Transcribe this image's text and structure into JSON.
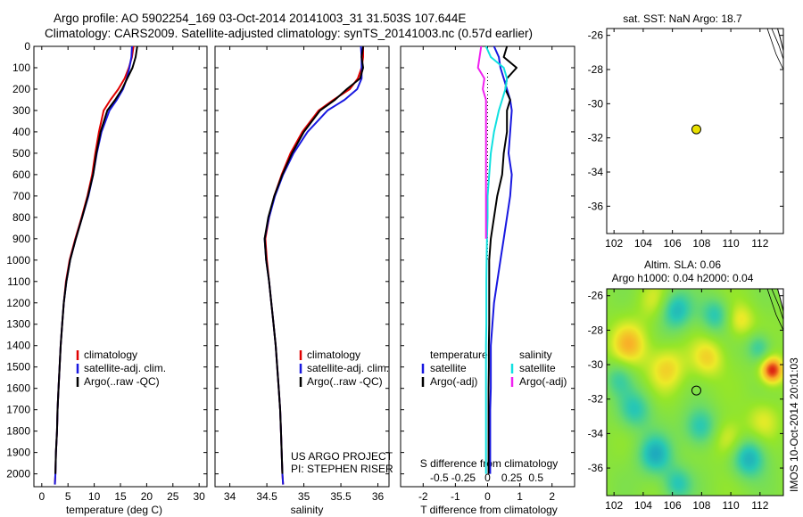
{
  "header": {
    "line1": "Argo profile: AO 5902254_169 03-Oct-2014 20141003_31 31.503S 107.644E",
    "line2": "Climatology: CARS2009. Satellite-adjusted climatology: synTS_20141003.nc (0.57d earlier)"
  },
  "footer": {
    "stamp": "IMOS 10-Oct-2014 20:01:03"
  },
  "colors": {
    "climatology": "#e00000",
    "satellite": "#1818e0",
    "argo": "#000000",
    "sat_salinity": "#10e0e0",
    "argo_salinity": "#f020f0",
    "marker": "#e8e000"
  },
  "chart_data": [
    {
      "type": "line",
      "id": "temperature",
      "xlabel": "temperature (deg C)",
      "ylabel": "",
      "xlim": [
        -1.5,
        31.5
      ],
      "ylim": [
        2060,
        0
      ],
      "xticks": [
        0,
        5,
        10,
        15,
        20,
        25,
        30
      ],
      "xtick_labels": [
        "0",
        "5",
        "10",
        "15",
        "20",
        "25",
        "30"
      ],
      "yticks": [
        0,
        100,
        200,
        300,
        400,
        500,
        600,
        700,
        800,
        900,
        1000,
        1100,
        1200,
        1300,
        1400,
        1500,
        1600,
        1700,
        1800,
        1900,
        2000
      ],
      "ytick_labels": [
        "0",
        "100",
        "200",
        "300",
        "400",
        "500",
        "600",
        "700",
        "800",
        "900",
        "1000",
        "1100",
        "1200",
        "1300",
        "1400",
        "1500",
        "1600",
        "1700",
        "1800",
        "1900",
        "2000"
      ],
      "legend": [
        "climatology",
        "satellite-adj. clim.",
        "Argo(..raw -QC)"
      ],
      "series": [
        {
          "name": "climatology",
          "color": "#e00000",
          "x": [
            17.5,
            17.2,
            16.6,
            15.8,
            14.6,
            13.1,
            11.8,
            10.9,
            10.2,
            9.6,
            8.7,
            7.6,
            6.4,
            5.3,
            4.6,
            4.2,
            3.9,
            3.6,
            3.4,
            3.2,
            3.0,
            2.9,
            2.7,
            2.6,
            2.5
          ],
          "y": [
            0,
            50,
            100,
            150,
            200,
            250,
            300,
            400,
            500,
            600,
            700,
            800,
            900,
            1000,
            1100,
            1200,
            1300,
            1400,
            1500,
            1600,
            1700,
            1800,
            1900,
            2000,
            2050
          ]
        },
        {
          "name": "satellite-adj. clim.",
          "color": "#1818e0",
          "x": [
            17.2,
            17.1,
            16.7,
            16.2,
            15.5,
            14.3,
            12.9,
            11.4,
            10.5,
            9.8,
            8.9,
            7.7,
            6.5,
            5.4,
            4.7,
            4.2,
            3.9,
            3.6,
            3.4,
            3.2,
            3.0,
            2.9,
            2.7,
            2.6,
            2.5
          ],
          "y": [
            0,
            50,
            100,
            150,
            200,
            250,
            300,
            400,
            500,
            600,
            700,
            800,
            900,
            1000,
            1100,
            1200,
            1300,
            1400,
            1500,
            1600,
            1700,
            1800,
            1900,
            2000,
            2050
          ]
        },
        {
          "name": "Argo(..raw -QC)",
          "color": "#000000",
          "x": [
            18.2,
            17.9,
            17.3,
            16.3,
            15.3,
            14.0,
            12.5,
            11.2,
            10.4,
            9.8,
            8.8,
            7.7,
            6.5,
            5.4,
            4.7,
            4.2,
            3.9,
            3.6,
            3.4,
            3.2,
            3.0,
            2.9,
            2.7,
            2.6
          ],
          "y": [
            0,
            50,
            100,
            150,
            200,
            250,
            300,
            400,
            500,
            600,
            700,
            800,
            900,
            1000,
            1100,
            1200,
            1300,
            1400,
            1500,
            1600,
            1700,
            1800,
            1900,
            2000
          ]
        }
      ]
    },
    {
      "type": "line",
      "id": "salinity",
      "xlabel": "salinity",
      "xlim": [
        33.8,
        36.15
      ],
      "ylim": [
        2060,
        0
      ],
      "xticks": [
        34,
        34.5,
        35,
        35.5,
        36
      ],
      "xtick_labels": [
        "34",
        "34.5",
        "35",
        "35.5",
        "36"
      ],
      "legend": [
        "climatology",
        "satellite-adj. clim.",
        "Argo(..raw -QC)"
      ],
      "annotation1": "US ARGO PROJECT",
      "annotation2": "PI: STEPHEN RISER",
      "series": [
        {
          "name": "climatology",
          "color": "#e00000",
          "x": [
            35.8,
            35.8,
            35.78,
            35.73,
            35.62,
            35.4,
            35.2,
            34.98,
            34.82,
            34.7,
            34.6,
            34.53,
            34.48,
            34.5,
            34.53,
            34.56,
            34.59,
            34.62,
            34.64,
            34.66,
            34.68,
            34.69,
            34.7,
            34.71,
            34.72
          ],
          "y": [
            0,
            50,
            100,
            150,
            200,
            250,
            300,
            400,
            500,
            600,
            700,
            800,
            900,
            1000,
            1100,
            1200,
            1300,
            1400,
            1500,
            1600,
            1700,
            1800,
            1900,
            2000,
            2050
          ]
        },
        {
          "name": "satellite-adj. clim.",
          "color": "#1818e0",
          "x": [
            35.77,
            35.78,
            35.78,
            35.78,
            35.72,
            35.55,
            35.32,
            35.05,
            34.86,
            34.72,
            34.61,
            34.53,
            34.47,
            34.49,
            34.53,
            34.56,
            34.59,
            34.62,
            34.64,
            34.66,
            34.68,
            34.69,
            34.7,
            34.71,
            34.72
          ],
          "y": [
            0,
            50,
            100,
            150,
            200,
            250,
            300,
            400,
            500,
            600,
            700,
            800,
            900,
            1000,
            1100,
            1200,
            1300,
            1400,
            1500,
            1600,
            1700,
            1800,
            1900,
            2000,
            2050
          ]
        },
        {
          "name": "Argo(..raw -QC)",
          "color": "#000000",
          "x": [
            35.8,
            35.78,
            35.8,
            35.76,
            35.58,
            35.42,
            35.22,
            35.0,
            34.84,
            34.71,
            34.6,
            34.52,
            34.47,
            34.49,
            34.53,
            34.56,
            34.59,
            34.62,
            34.64,
            34.66,
            34.68,
            34.69,
            34.7,
            34.71
          ],
          "y": [
            0,
            50,
            100,
            150,
            200,
            250,
            300,
            400,
            500,
            600,
            700,
            800,
            900,
            1000,
            1100,
            1200,
            1300,
            1400,
            1500,
            1600,
            1700,
            1800,
            1900,
            2000
          ]
        }
      ]
    },
    {
      "type": "line",
      "id": "difference",
      "xlabel": "T difference from climatology",
      "xlabel_top": "S difference from climatology",
      "xlim": [
        -2.7,
        2.7
      ],
      "ylim": [
        2060,
        0
      ],
      "xticks": [
        -2,
        -1,
        0,
        1,
        2
      ],
      "xtick_labels": [
        "-2",
        "-1",
        "0",
        "1",
        "2"
      ],
      "sticks": [
        -1.5,
        -0.75,
        0,
        0.75,
        1.5
      ],
      "stick_labels": [
        "-0.5",
        "-0.25",
        "0",
        "0.25",
        "0.5"
      ],
      "legend_title_t": "temperature",
      "legend_title_s": "salinity",
      "legend": [
        "satellite",
        "Argo(-adj)",
        "satellite",
        "Argo(-adj)"
      ],
      "series": [
        {
          "name": "satellite",
          "color": "#1818e0",
          "x": [
            0.2,
            0.35,
            0.4,
            0.5,
            0.6,
            0.7,
            0.75,
            0.7,
            0.65,
            0.75,
            0.7,
            0.6,
            0.5,
            0.4,
            0.3,
            0.2,
            0.15,
            0.1,
            0.1,
            0.1,
            0.08,
            0.08,
            0.08,
            0.08
          ],
          "y": [
            0,
            50,
            100,
            150,
            200,
            250,
            300,
            400,
            500,
            600,
            700,
            800,
            900,
            1000,
            1100,
            1200,
            1300,
            1400,
            1500,
            1600,
            1700,
            1800,
            1900,
            2000
          ]
        },
        {
          "name": "Argo(-adj)",
          "color": "#000000",
          "x": [
            0.6,
            0.5,
            0.9,
            0.6,
            0.55,
            0.7,
            0.6,
            0.6,
            0.5,
            0.45,
            0.3,
            0.2,
            0.1,
            0.05,
            0.05,
            0.05,
            0.05,
            0.04,
            0.04,
            0.03,
            0.03,
            0.03,
            0.03,
            0.03
          ],
          "y": [
            0,
            50,
            100,
            150,
            200,
            250,
            300,
            400,
            500,
            600,
            700,
            800,
            900,
            1000,
            1100,
            1200,
            1300,
            1400,
            1500,
            1600,
            1700,
            1800,
            1900,
            2000
          ]
        },
        {
          "name": "sat salinity",
          "color": "#10e0e0",
          "x": [
            -0.05,
            0.1,
            0.5,
            0.6,
            0.55,
            0.45,
            0.35,
            0.2,
            0.1,
            0.05,
            0.0,
            0.0,
            -0.02,
            -0.03,
            -0.04,
            -0.04,
            -0.04,
            -0.05,
            -0.05,
            -0.05,
            -0.05,
            -0.05,
            -0.05,
            -0.05
          ],
          "y": [
            0,
            50,
            100,
            150,
            200,
            250,
            300,
            400,
            500,
            600,
            700,
            800,
            900,
            1000,
            1100,
            1200,
            1300,
            1400,
            1500,
            1600,
            1700,
            1800,
            1900,
            2000
          ]
        },
        {
          "name": "Argo salinity",
          "color": "#f020f0",
          "x": [
            -0.2,
            -0.25,
            -0.3,
            -0.1,
            -0.15,
            -0.05,
            -0.05,
            -0.05,
            -0.05,
            -0.05,
            -0.05,
            -0.05,
            -0.05
          ],
          "y": [
            0,
            50,
            100,
            150,
            200,
            250,
            300,
            400,
            500,
            600,
            700,
            800,
            900
          ]
        }
      ]
    },
    {
      "type": "scatter",
      "id": "sst-map",
      "title": "sat. SST: NaN Argo: 18.7",
      "xlim": [
        101.5,
        113.6
      ],
      "ylim": [
        -37.6,
        -25.6
      ],
      "xticks": [
        102,
        104,
        106,
        108,
        110,
        112
      ],
      "yticks": [
        -26,
        -28,
        -30,
        -32,
        -34,
        -36
      ],
      "xtick_labels": [
        "102",
        "104",
        "106",
        "108",
        "110",
        "112"
      ],
      "ytick_labels": [
        "-26",
        "-28",
        "-30",
        "-32",
        "-34",
        "-36"
      ],
      "points": [
        {
          "x": 107.64,
          "y": -31.5
        }
      ]
    },
    {
      "type": "heatmap",
      "id": "sla-map",
      "title": "Altim. SLA: 0.06",
      "subtitle": "Argo h1000: 0.04 h2000: 0.04",
      "xlim": [
        101.5,
        113.6
      ],
      "ylim": [
        -37.6,
        -25.6
      ],
      "xticks": [
        102,
        104,
        106,
        108,
        110,
        112
      ],
      "yticks": [
        -26,
        -28,
        -30,
        -32,
        -34,
        -36
      ],
      "xtick_labels": [
        "102",
        "104",
        "106",
        "108",
        "110",
        "112"
      ],
      "ytick_labels": [
        "-26",
        "-28",
        "-30",
        "-32",
        "-34",
        "-36"
      ],
      "points": [
        {
          "x": 107.64,
          "y": -31.5
        }
      ],
      "features": [
        {
          "x": 112.8,
          "y": -30.3,
          "v": 1.0,
          "s": 0.55
        },
        {
          "x": 103.0,
          "y": -28.8,
          "v": 0.55,
          "s": 0.9
        },
        {
          "x": 105.6,
          "y": -30.2,
          "v": 0.45,
          "s": 0.9
        },
        {
          "x": 108.4,
          "y": -29.6,
          "v": 0.45,
          "s": 0.8
        },
        {
          "x": 110.6,
          "y": -27.4,
          "v": 0.4,
          "s": 0.7
        },
        {
          "x": 109.8,
          "y": -34.3,
          "v": 0.4,
          "s": 0.8
        },
        {
          "x": 104.8,
          "y": -26.3,
          "v": 0.3,
          "s": 0.8
        },
        {
          "x": 112.2,
          "y": -33.2,
          "v": 0.3,
          "s": 0.8
        },
        {
          "x": 104.8,
          "y": -35.2,
          "v": -0.75,
          "s": 0.8
        },
        {
          "x": 106.2,
          "y": -26.8,
          "v": -0.7,
          "s": 0.8
        },
        {
          "x": 111.2,
          "y": -35.4,
          "v": -0.75,
          "s": 0.8
        },
        {
          "x": 103.4,
          "y": -32.6,
          "v": -0.55,
          "s": 0.8
        },
        {
          "x": 107.9,
          "y": -33.6,
          "v": -0.6,
          "s": 0.8
        },
        {
          "x": 108.9,
          "y": -27.1,
          "v": -0.55,
          "s": 0.7
        },
        {
          "x": 106.3,
          "y": -36.9,
          "v": -0.55,
          "s": 0.7
        },
        {
          "x": 111.9,
          "y": -29.0,
          "v": -0.5,
          "s": 0.6
        },
        {
          "x": 102.3,
          "y": -30.8,
          "v": -0.4,
          "s": 0.7
        }
      ]
    }
  ]
}
